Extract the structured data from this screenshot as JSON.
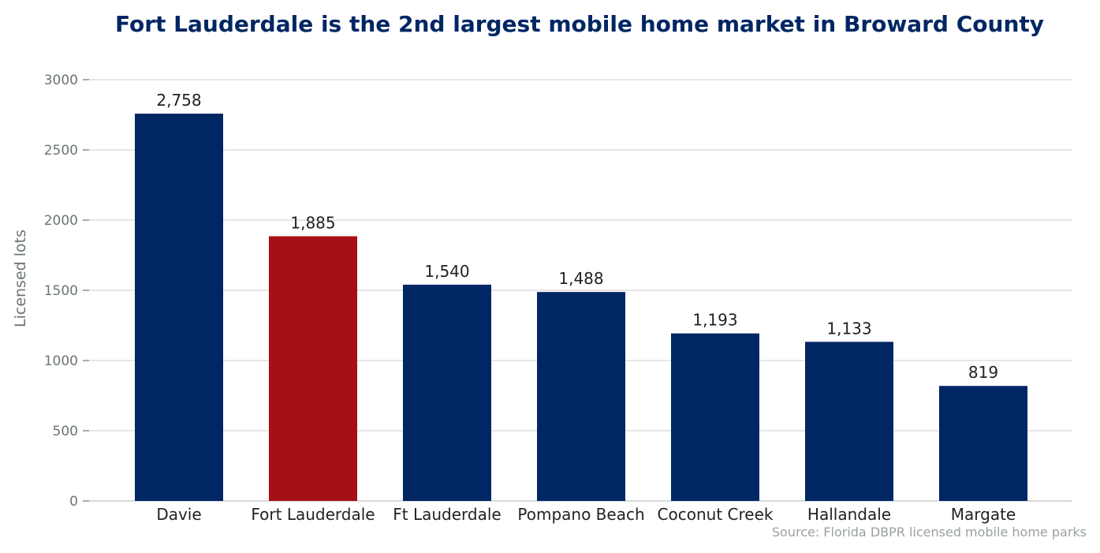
{
  "chart_data": {
    "type": "bar",
    "title": "Fort Lauderdale is the 2nd largest mobile home market in Broward County",
    "ylabel": "Licensed lots",
    "xlabel": "",
    "categories": [
      "Davie",
      "Fort Lauderdale",
      "Ft Lauderdale",
      "Pompano Beach",
      "Coconut Creek",
      "Hallandale",
      "Margate"
    ],
    "values": [
      2758,
      1885,
      1540,
      1488,
      1193,
      1133,
      819
    ],
    "value_labels": [
      "2,758",
      "1,885",
      "1,540",
      "1,488",
      "1,193",
      "1,133",
      "819"
    ],
    "highlight_index": 1,
    "ylim": [
      0,
      3000
    ],
    "yticks": [
      0,
      500,
      1000,
      1500,
      2000,
      2500,
      3000
    ],
    "ytick_labels": [
      "0",
      "500",
      "1000",
      "1500",
      "2000",
      "2500",
      "3000"
    ],
    "grid": true,
    "colors": {
      "bar": "#002664",
      "highlight": "#a61014",
      "grid": "#d8d8d8",
      "title": "#002664"
    },
    "source": "Source: Florida DBPR licensed mobile home parks"
  }
}
